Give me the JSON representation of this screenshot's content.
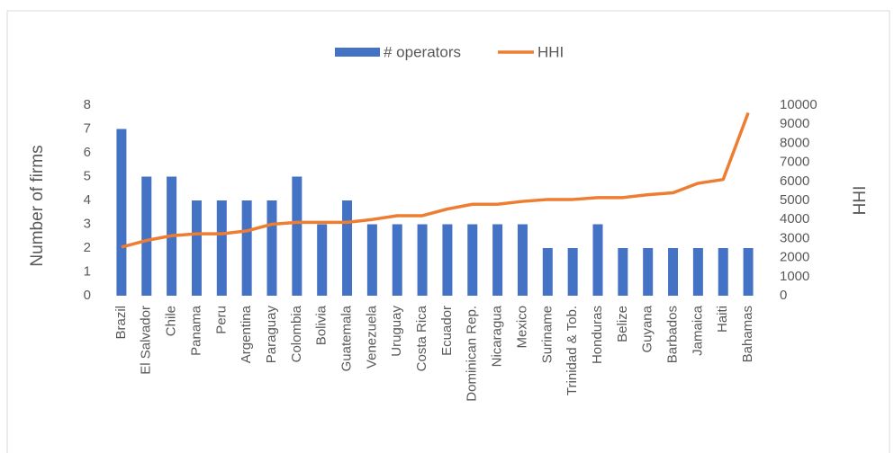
{
  "chart_data": {
    "type": "bar",
    "categories": [
      "Brazil",
      "El Salvador",
      "Chile",
      "Panama",
      "Peru",
      "Argentina",
      "Paraguay",
      "Colombia",
      "Bolivia",
      "Guatemala",
      "Venezuela",
      "Uruguay",
      "Costa Rica",
      "Ecuador",
      "Dominican Rep.",
      "Nicaragua",
      "Mexico",
      "Suriname",
      "Trinidad & Tob.",
      "Honduras",
      "Belize",
      "Guyana",
      "Barbados",
      "Jamaica",
      "Haiti",
      "Bahamas"
    ],
    "series": [
      {
        "name": "# operators",
        "type": "bar",
        "color": "#4472c4",
        "axis": "y",
        "values": [
          7,
          5,
          5,
          4,
          4,
          4,
          4,
          5,
          3,
          4,
          3,
          3,
          3,
          3,
          3,
          3,
          3,
          2,
          2,
          3,
          2,
          2,
          2,
          2,
          2,
          2
        ]
      },
      {
        "name": "HHI",
        "type": "line",
        "color": "#ed7d31",
        "axis": "y2",
        "values": [
          2550,
          2900,
          3150,
          3250,
          3250,
          3400,
          3750,
          3850,
          3850,
          3850,
          4000,
          4200,
          4200,
          4550,
          4800,
          4800,
          4950,
          5050,
          5050,
          5150,
          5150,
          5300,
          5400,
          5900,
          6100,
          9600
        ]
      }
    ],
    "y_label": "Number of firms",
    "y2_label": "HHI",
    "ylim": [
      0,
      8
    ],
    "yticks": [
      0,
      1,
      2,
      3,
      4,
      5,
      6,
      7,
      8
    ],
    "y2lim": [
      0,
      10000
    ],
    "y2ticks": [
      0,
      1000,
      2000,
      3000,
      4000,
      5000,
      6000,
      7000,
      8000,
      9000,
      10000
    ],
    "legend": "top"
  }
}
